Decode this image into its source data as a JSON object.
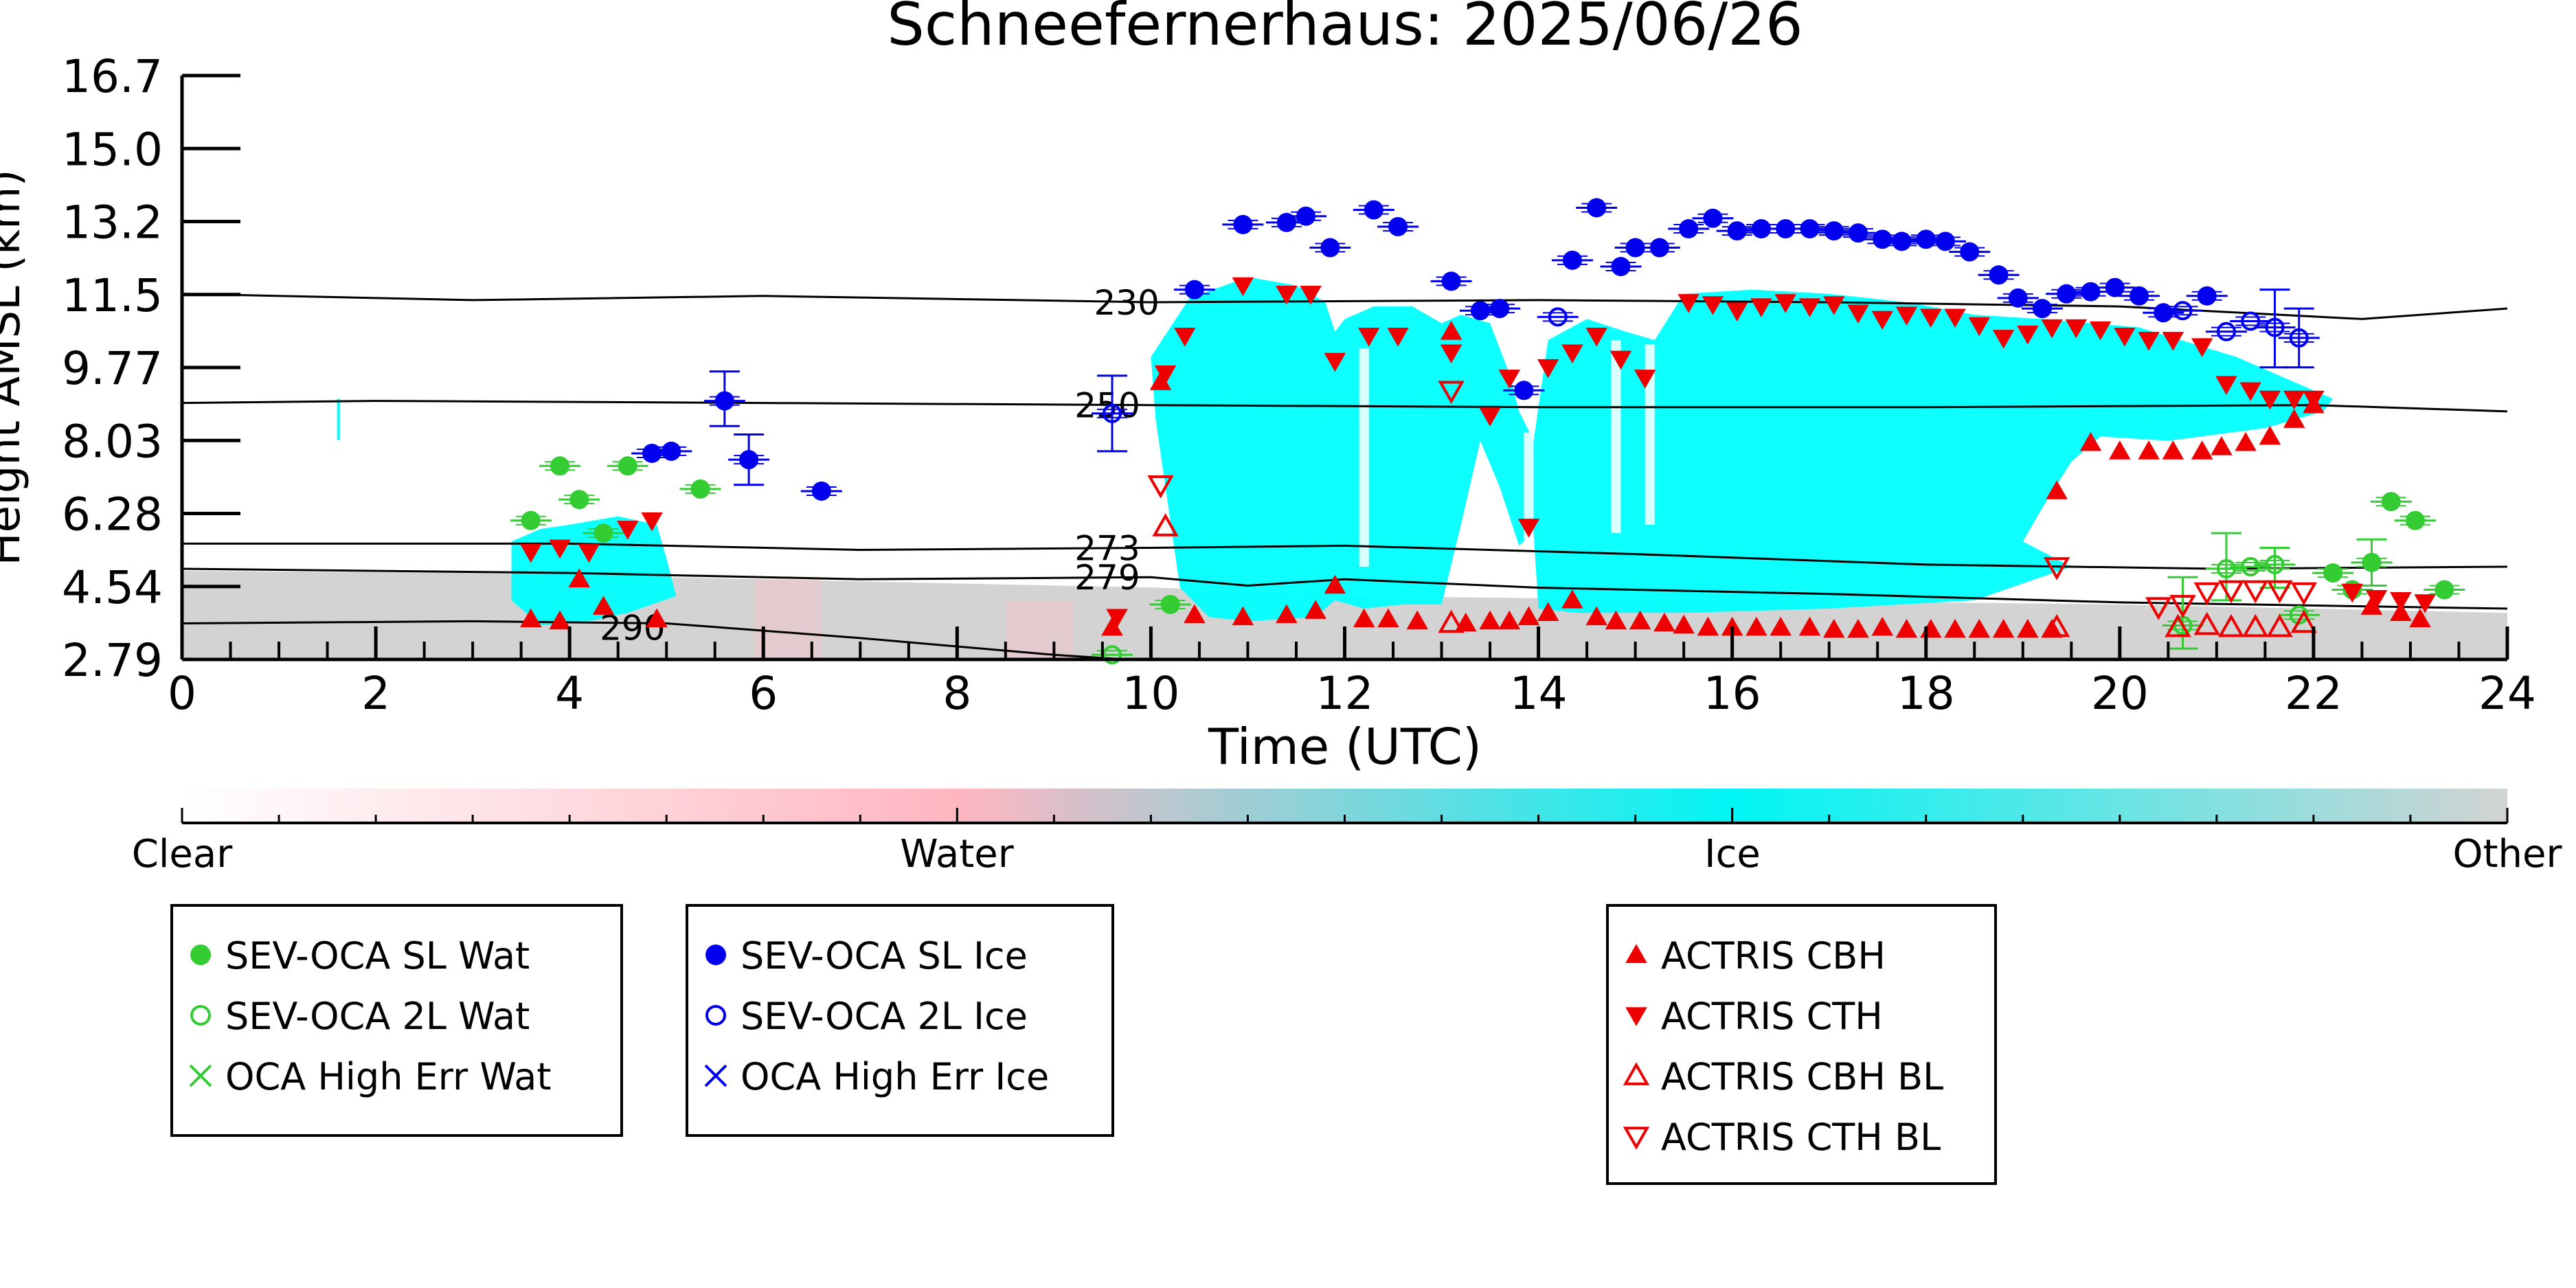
{
  "chart_data": {
    "type": "scatter",
    "title": "Schneefernerhaus: 2025/06/26",
    "xlabel": "Time (UTC)",
    "ylabel": "Height AMSL (km)",
    "xlim": [
      0,
      24
    ],
    "ylim": [
      2.79,
      16.7
    ],
    "x_ticks": [
      0,
      2,
      4,
      6,
      8,
      10,
      12,
      14,
      16,
      18,
      20,
      22,
      24
    ],
    "y_ticks": [
      "2.79",
      "4.54",
      "6.28",
      "8.03",
      "9.77",
      "11.5",
      "13.2",
      "15.0",
      "16.7"
    ],
    "colorbar": {
      "labels": [
        "Clear",
        "Water",
        "Ice",
        "Other"
      ],
      "colors": [
        "#ffffff",
        "#ffb6c1",
        "#00ffff",
        "#d3d3d3"
      ]
    },
    "contours": [
      {
        "label": "230",
        "points": [
          [
            0,
            11.5
          ],
          [
            3,
            11.35
          ],
          [
            6,
            11.45
          ],
          [
            10,
            11.3
          ],
          [
            14,
            11.35
          ],
          [
            17,
            11.3
          ],
          [
            20,
            11.2
          ],
          [
            22.5,
            10.9
          ],
          [
            24,
            11.15
          ]
        ]
      },
      {
        "label": "250",
        "points": [
          [
            0,
            8.9
          ],
          [
            2,
            8.95
          ],
          [
            6,
            8.9
          ],
          [
            10,
            8.85
          ],
          [
            14,
            8.8
          ],
          [
            18,
            8.8
          ],
          [
            22,
            8.85
          ],
          [
            24,
            8.7
          ]
        ]
      },
      {
        "label": "273",
        "points": [
          [
            0,
            5.55
          ],
          [
            4,
            5.55
          ],
          [
            7,
            5.4
          ],
          [
            10,
            5.45
          ],
          [
            12,
            5.5
          ],
          [
            15,
            5.3
          ],
          [
            18,
            5.05
          ],
          [
            21,
            4.95
          ],
          [
            24,
            5.0
          ]
        ]
      },
      {
        "label": "279",
        "points": [
          [
            0,
            4.95
          ],
          [
            4,
            4.85
          ],
          [
            7,
            4.7
          ],
          [
            10,
            4.75
          ],
          [
            11,
            4.55
          ],
          [
            12,
            4.7
          ],
          [
            14,
            4.5
          ],
          [
            17,
            4.35
          ],
          [
            20,
            4.15
          ],
          [
            24,
            4.0
          ]
        ]
      },
      {
        "label": "290",
        "points": [
          [
            0,
            3.65
          ],
          [
            3,
            3.7
          ],
          [
            5,
            3.65
          ],
          [
            7,
            3.3
          ],
          [
            9,
            2.9
          ],
          [
            10,
            2.75
          ]
        ]
      }
    ],
    "series": [
      {
        "name": "SEV-OCA SL Wat",
        "marker": "filled-circle",
        "color": "#33cc33",
        "points": [
          [
            3.6,
            6.1
          ],
          [
            3.9,
            7.4
          ],
          [
            4.1,
            6.6
          ],
          [
            4.35,
            5.8
          ],
          [
            4.6,
            7.4
          ],
          [
            5.35,
            6.85
          ],
          [
            10.2,
            4.1
          ],
          [
            22.2,
            4.85
          ],
          [
            22.4,
            4.45
          ],
          [
            22.6,
            5.1
          ],
          [
            22.8,
            6.55
          ],
          [
            23.05,
            6.1
          ],
          [
            23.35,
            4.45
          ]
        ]
      },
      {
        "name": "SEV-OCA 2L Wat",
        "marker": "open-circle",
        "color": "#33cc33",
        "points": [
          [
            9.6,
            2.9
          ],
          [
            20.65,
            3.6
          ],
          [
            21.1,
            4.95
          ],
          [
            21.35,
            5.0
          ],
          [
            21.6,
            5.05
          ],
          [
            21.85,
            3.85
          ]
        ]
      },
      {
        "name": "OCA High Err Wat",
        "marker": "x",
        "color": "#33cc33",
        "points": []
      },
      {
        "name": "SEV-OCA SL Ice",
        "marker": "filled-circle",
        "color": "#0000ee",
        "points": [
          [
            4.85,
            7.7
          ],
          [
            5.05,
            7.75
          ],
          [
            5.6,
            8.95
          ],
          [
            5.85,
            7.55
          ],
          [
            6.6,
            6.8
          ],
          [
            10.45,
            11.6
          ],
          [
            10.95,
            13.15
          ],
          [
            11.4,
            13.2
          ],
          [
            11.6,
            13.35
          ],
          [
            11.85,
            12.6
          ],
          [
            12.3,
            13.5
          ],
          [
            12.55,
            13.1
          ],
          [
            13.1,
            11.8
          ],
          [
            13.4,
            11.1
          ],
          [
            13.6,
            11.15
          ],
          [
            13.85,
            9.2
          ],
          [
            14.35,
            12.3
          ],
          [
            14.6,
            13.55
          ],
          [
            14.85,
            12.15
          ],
          [
            15.0,
            12.6
          ],
          [
            15.25,
            12.6
          ],
          [
            15.55,
            13.05
          ],
          [
            15.8,
            13.3
          ],
          [
            16.05,
            13.0
          ],
          [
            16.3,
            13.05
          ],
          [
            16.55,
            13.05
          ],
          [
            16.8,
            13.05
          ],
          [
            17.05,
            13.0
          ],
          [
            17.3,
            12.95
          ],
          [
            17.55,
            12.8
          ],
          [
            17.75,
            12.75
          ],
          [
            18.0,
            12.8
          ],
          [
            18.2,
            12.75
          ],
          [
            18.45,
            12.5
          ],
          [
            18.75,
            11.95
          ],
          [
            18.95,
            11.4
          ],
          [
            19.2,
            11.15
          ],
          [
            19.45,
            11.5
          ],
          [
            19.7,
            11.55
          ],
          [
            19.95,
            11.65
          ],
          [
            20.2,
            11.45
          ],
          [
            20.45,
            11.05
          ],
          [
            20.9,
            11.45
          ]
        ]
      },
      {
        "name": "SEV-OCA 2L Ice",
        "marker": "open-circle",
        "color": "#0000ee",
        "points": [
          [
            9.6,
            8.65
          ],
          [
            14.2,
            10.95
          ],
          [
            20.65,
            11.1
          ],
          [
            21.1,
            10.6
          ],
          [
            21.35,
            10.85
          ],
          [
            21.6,
            10.7
          ],
          [
            21.85,
            10.45
          ]
        ]
      },
      {
        "name": "OCA High Err Ice",
        "marker": "x",
        "color": "#0000ee",
        "points": []
      },
      {
        "name": "ACTRIS CBH",
        "marker": "filled-triangle-up",
        "color": "#ee0000",
        "points": [
          [
            3.6,
            3.75
          ],
          [
            3.9,
            3.7
          ],
          [
            4.1,
            4.7
          ],
          [
            4.35,
            4.05
          ],
          [
            4.9,
            3.75
          ],
          [
            9.6,
            3.55
          ],
          [
            10.1,
            9.4
          ],
          [
            10.45,
            3.85
          ],
          [
            10.95,
            3.8
          ],
          [
            11.4,
            3.85
          ],
          [
            11.7,
            3.95
          ],
          [
            11.9,
            4.55
          ],
          [
            12.2,
            3.75
          ],
          [
            12.45,
            3.75
          ],
          [
            12.75,
            3.7
          ],
          [
            13.1,
            10.6
          ],
          [
            13.25,
            3.65
          ],
          [
            13.5,
            3.7
          ],
          [
            13.7,
            3.7
          ],
          [
            13.9,
            3.8
          ],
          [
            14.1,
            3.9
          ],
          [
            14.35,
            4.2
          ],
          [
            14.6,
            3.8
          ],
          [
            14.8,
            3.7
          ],
          [
            15.05,
            3.7
          ],
          [
            15.3,
            3.65
          ],
          [
            15.5,
            3.6
          ],
          [
            15.75,
            3.55
          ],
          [
            16.0,
            3.55
          ],
          [
            16.25,
            3.55
          ],
          [
            16.5,
            3.55
          ],
          [
            16.8,
            3.55
          ],
          [
            17.05,
            3.5
          ],
          [
            17.3,
            3.5
          ],
          [
            17.55,
            3.55
          ],
          [
            17.8,
            3.5
          ],
          [
            18.05,
            3.5
          ],
          [
            18.3,
            3.5
          ],
          [
            18.55,
            3.5
          ],
          [
            18.8,
            3.5
          ],
          [
            19.05,
            3.5
          ],
          [
            19.3,
            3.5
          ],
          [
            19.35,
            6.8
          ],
          [
            19.7,
            7.95
          ],
          [
            20.0,
            7.75
          ],
          [
            20.3,
            7.75
          ],
          [
            20.55,
            7.75
          ],
          [
            20.85,
            7.75
          ],
          [
            21.05,
            7.85
          ],
          [
            21.3,
            7.95
          ],
          [
            21.55,
            8.1
          ],
          [
            21.8,
            8.5
          ],
          [
            22.0,
            8.85
          ],
          [
            22.6,
            4.05
          ],
          [
            22.9,
            3.9
          ],
          [
            23.1,
            3.75
          ]
        ]
      },
      {
        "name": "ACTRIS CTH",
        "marker": "filled-triangle-down",
        "color": "#ee0000",
        "points": [
          [
            3.6,
            5.35
          ],
          [
            3.9,
            5.45
          ],
          [
            4.2,
            5.35
          ],
          [
            4.6,
            5.9
          ],
          [
            4.85,
            6.1
          ],
          [
            9.65,
            3.8
          ],
          [
            10.15,
            9.6
          ],
          [
            10.35,
            10.5
          ],
          [
            10.95,
            11.7
          ],
          [
            11.4,
            11.5
          ],
          [
            11.65,
            11.5
          ],
          [
            11.9,
            9.9
          ],
          [
            12.25,
            10.5
          ],
          [
            12.55,
            10.5
          ],
          [
            13.1,
            10.1
          ],
          [
            13.5,
            8.6
          ],
          [
            13.7,
            9.5
          ],
          [
            13.9,
            5.95
          ],
          [
            14.1,
            9.75
          ],
          [
            14.35,
            10.1
          ],
          [
            14.6,
            10.5
          ],
          [
            14.85,
            9.95
          ],
          [
            15.1,
            9.5
          ],
          [
            15.55,
            11.3
          ],
          [
            15.8,
            11.25
          ],
          [
            16.05,
            11.1
          ],
          [
            16.3,
            11.2
          ],
          [
            16.55,
            11.3
          ],
          [
            16.8,
            11.2
          ],
          [
            17.05,
            11.25
          ],
          [
            17.3,
            11.05
          ],
          [
            17.55,
            10.9
          ],
          [
            17.8,
            11.0
          ],
          [
            18.05,
            10.95
          ],
          [
            18.3,
            10.95
          ],
          [
            18.55,
            10.75
          ],
          [
            18.8,
            10.45
          ],
          [
            19.05,
            10.55
          ],
          [
            19.3,
            10.7
          ],
          [
            19.55,
            10.7
          ],
          [
            19.8,
            10.65
          ],
          [
            20.05,
            10.5
          ],
          [
            20.3,
            10.4
          ],
          [
            20.55,
            10.4
          ],
          [
            20.85,
            10.25
          ],
          [
            21.1,
            9.35
          ],
          [
            21.35,
            9.2
          ],
          [
            21.55,
            9.0
          ],
          [
            21.8,
            9.0
          ],
          [
            22.0,
            9.0
          ],
          [
            22.4,
            4.4
          ],
          [
            22.65,
            4.25
          ],
          [
            22.9,
            4.2
          ],
          [
            23.15,
            4.15
          ]
        ]
      },
      {
        "name": "ACTRIS CBH BL",
        "marker": "open-triangle-up",
        "color": "#ee0000",
        "points": [
          [
            10.15,
            5.95
          ],
          [
            13.1,
            3.65
          ],
          [
            19.35,
            3.55
          ],
          [
            20.6,
            3.55
          ],
          [
            20.9,
            3.6
          ],
          [
            21.15,
            3.55
          ],
          [
            21.4,
            3.55
          ],
          [
            21.65,
            3.55
          ],
          [
            21.9,
            3.65
          ]
        ]
      },
      {
        "name": "ACTRIS CTH BL",
        "marker": "open-triangle-down",
        "color": "#ee0000",
        "points": [
          [
            10.1,
            6.95
          ],
          [
            13.1,
            9.2
          ],
          [
            19.35,
            5.0
          ],
          [
            20.4,
            4.05
          ],
          [
            20.65,
            4.1
          ],
          [
            20.9,
            4.4
          ],
          [
            21.15,
            4.45
          ],
          [
            21.4,
            4.45
          ],
          [
            21.65,
            4.45
          ],
          [
            21.9,
            4.4
          ]
        ]
      }
    ],
    "error_bars": [
      {
        "x": 5.6,
        "y": 8.95,
        "lo": 8.35,
        "hi": 9.65,
        "color": "#0000ee"
      },
      {
        "x": 5.85,
        "y": 7.55,
        "lo": 6.95,
        "hi": 8.15,
        "color": "#0000ee"
      },
      {
        "x": 9.6,
        "y": 8.65,
        "lo": 7.75,
        "hi": 9.55,
        "color": "#0000ee"
      },
      {
        "x": 21.6,
        "y": 10.7,
        "lo": 9.75,
        "hi": 11.6,
        "color": "#0000ee"
      },
      {
        "x": 21.85,
        "y": 10.45,
        "lo": 9.75,
        "hi": 11.15,
        "color": "#0000ee"
      },
      {
        "x": 21.1,
        "y": 4.95,
        "lo": 4.2,
        "hi": 5.8,
        "color": "#33cc33"
      },
      {
        "x": 21.6,
        "y": 5.05,
        "lo": 4.5,
        "hi": 5.45,
        "color": "#33cc33"
      },
      {
        "x": 22.6,
        "y": 5.1,
        "lo": 4.55,
        "hi": 5.65,
        "color": "#33cc33"
      },
      {
        "x": 20.65,
        "y": 3.6,
        "lo": 3.05,
        "hi": 4.75,
        "color": "#33cc33"
      }
    ],
    "cloud_mask": {
      "ice": [
        [
          10.1,
          11.95,
          10.3
        ],
        [
          11.95,
          12.3,
          3.5
        ],
        [
          12.3,
          13.0,
          3.5
        ],
        [
          13.05,
          13.4,
          3.5
        ],
        [
          13.4,
          13.85,
          3.5
        ],
        [
          13.9,
          15.4,
          3.5
        ],
        [
          15.4,
          19.0,
          3.5
        ]
      ],
      "other": [
        [
          0,
          10.1
        ],
        [
          10.1,
          24
        ]
      ]
    },
    "legend_groups": [
      {
        "entries": [
          "SEV-OCA SL Wat",
          "SEV-OCA 2L Wat",
          "OCA High Err Wat"
        ]
      },
      {
        "entries": [
          "SEV-OCA SL Ice",
          "SEV-OCA 2L Ice",
          "OCA High Err Ice"
        ]
      },
      {
        "entries": [
          "ACTRIS CBH",
          "ACTRIS CTH",
          "ACTRIS CBH BL",
          "ACTRIS CTH BL"
        ]
      }
    ]
  }
}
